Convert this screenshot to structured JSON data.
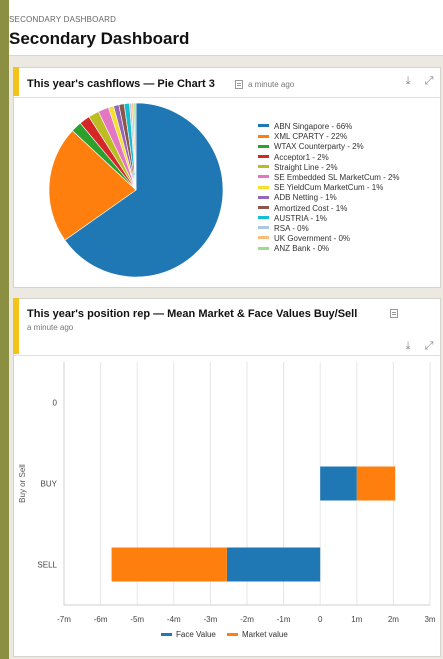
{
  "header": {
    "breadcrumb": "SECONDARY DASHBOARD",
    "title": "Secondary Dashboard"
  },
  "panel1": {
    "title": "This year's cashflows — Pie Chart 3",
    "time": "a minute ago",
    "icons": [
      "info-icon",
      "download-icon",
      "expand-icon"
    ]
  },
  "panel2": {
    "title": "This year's position rep — Mean Market & Face Values Buy/Sell",
    "time": "a minute ago",
    "icons": [
      "info-icon",
      "download-icon",
      "expand-icon"
    ]
  },
  "chart_data": [
    {
      "type": "pie",
      "slices": [
        {
          "label": "ABN Singapore - 66%",
          "value": 66,
          "color": "#1f77b4"
        },
        {
          "label": "XML CPARTY - 22%",
          "value": 22,
          "color": "#ff7f0e"
        },
        {
          "label": "WTAX Counterparty - 2%",
          "value": 2,
          "color": "#2ca02c"
        },
        {
          "label": "Acceptor1 - 2%",
          "value": 2,
          "color": "#d62728"
        },
        {
          "label": "Straight Line - 2%",
          "value": 2,
          "color": "#bcbd22"
        },
        {
          "label": "SE Embedded SL MarketCum - 2%",
          "value": 2,
          "color": "#e377c2"
        },
        {
          "label": "SE YieldCum MarketCum - 1%",
          "value": 1,
          "color": "#f5e02a"
        },
        {
          "label": "ADB Netting - 1%",
          "value": 1,
          "color": "#9467bd"
        },
        {
          "label": "Amortized Cost - 1%",
          "value": 1,
          "color": "#8c564b"
        },
        {
          "label": "AUSTRIA - 1%",
          "value": 1,
          "color": "#17becf"
        },
        {
          "label": "RSA - 0%",
          "value": 0.4,
          "color": "#aec7e8"
        },
        {
          "label": "UK Government - 0%",
          "value": 0.4,
          "color": "#ffbb78"
        },
        {
          "label": "ANZ Bank - 0%",
          "value": 0.4,
          "color": "#98df8a"
        }
      ]
    },
    {
      "type": "bar",
      "orientation": "horizontal",
      "stacked": true,
      "categories": [
        "0",
        "BUY",
        "SELL"
      ],
      "ylabel": "Buy or Sell",
      "xlim": [
        -7000000,
        3000000
      ],
      "xticks": [
        "-7m",
        "-6m",
        "-5m",
        "-4m",
        "-3m",
        "-2m",
        "-1m",
        "0",
        "1m",
        "2m",
        "3m"
      ],
      "grid": true,
      "legend_position": "bottom",
      "series": [
        {
          "name": "Face Value",
          "color": "#1f77b4",
          "values": [
            0,
            1000000,
            -2550000
          ]
        },
        {
          "name": "Market value",
          "color": "#ff7f0e",
          "values": [
            0,
            1050000,
            -3150000
          ]
        }
      ]
    }
  ]
}
